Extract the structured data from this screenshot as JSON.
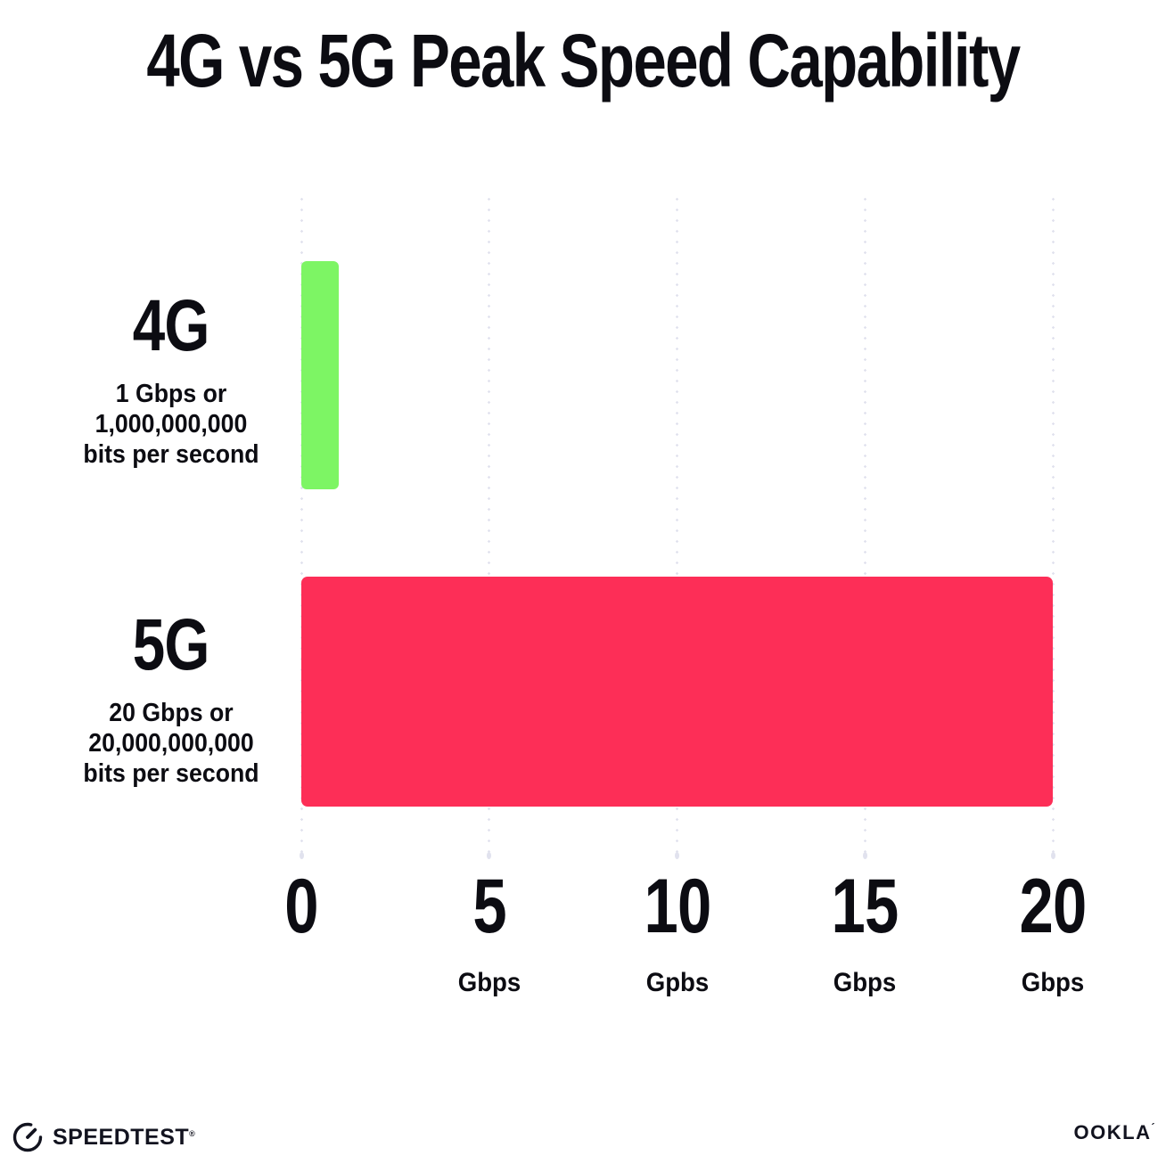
{
  "title": "4G vs 5G Peak Speed Capability",
  "chart_data": {
    "type": "bar",
    "orientation": "horizontal",
    "title": "4G vs 5G Peak Speed Capability",
    "categories": [
      "4G",
      "5G"
    ],
    "values": [
      1,
      20
    ],
    "unit": "Gbps",
    "xlim": [
      0,
      20
    ],
    "x_tick_values": [
      0,
      5,
      10,
      15,
      20
    ],
    "grid": "vertical-dotted",
    "grid_color": "#e1e2ee",
    "bar_colors": [
      "#7df564",
      "#fd2e57"
    ],
    "rows": [
      {
        "label": "4G",
        "value": 1,
        "color": "#7df564",
        "sub_lines": [
          "1 Gbps or",
          "1,000,000,000",
          "bits per second"
        ]
      },
      {
        "label": "5G",
        "value": 20,
        "color": "#fd2e57",
        "sub_lines": [
          "20 Gbps or",
          "20,000,000,000",
          "bits per second"
        ]
      }
    ],
    "x_ticks": [
      {
        "number": "0",
        "unit": ""
      },
      {
        "number": "5",
        "unit": "Gbps"
      },
      {
        "number": "10",
        "unit": "Gpbs"
      },
      {
        "number": "15",
        "unit": "Gbps"
      },
      {
        "number": "20",
        "unit": "Gbps"
      }
    ]
  },
  "footer": {
    "speedtest_label": "SPEEDTEST",
    "speedtest_mark": "®",
    "ookla_label": "OOKLA",
    "ookla_mark": "´"
  }
}
